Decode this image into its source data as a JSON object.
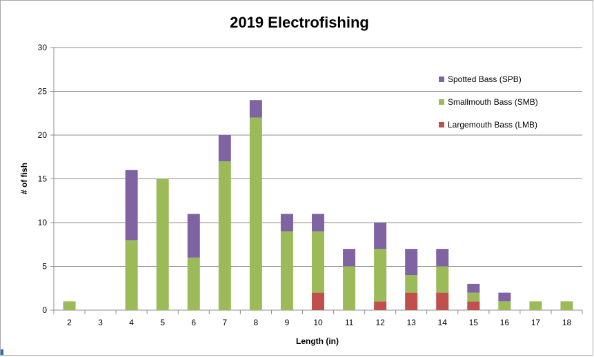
{
  "chart_data": {
    "type": "bar",
    "stacked": true,
    "title": "2019 Electrofishing",
    "xlabel": "Length (in)",
    "ylabel": "# of fish",
    "ylim": [
      0,
      30
    ],
    "yticks": [
      "0",
      "5",
      "10",
      "15",
      "20",
      "25",
      "30"
    ],
    "categories": [
      "2",
      "3",
      "4",
      "5",
      "6",
      "7",
      "8",
      "9",
      "10",
      "11",
      "12",
      "13",
      "14",
      "15",
      "16",
      "17",
      "18"
    ],
    "grid": "horizontal",
    "legend_position": "top-right",
    "series": [
      {
        "name": "Largemouth Bass (LMB)",
        "color": "#c0504d",
        "values": [
          0,
          0,
          0,
          0,
          0,
          0,
          0,
          0,
          2,
          0,
          1,
          2,
          2,
          1,
          0,
          0,
          0
        ]
      },
      {
        "name": "Smallmouth Bass (SMB)",
        "color": "#9bbb59",
        "values": [
          1,
          0,
          8,
          15,
          6,
          17,
          22,
          9,
          7,
          5,
          6,
          2,
          3,
          1,
          1,
          1,
          1
        ]
      },
      {
        "name": "Spotted Bass (SPB)",
        "color": "#8064a2",
        "values": [
          0,
          0,
          8,
          0,
          5,
          3,
          2,
          2,
          2,
          2,
          3,
          3,
          2,
          1,
          1,
          0,
          0
        ]
      }
    ],
    "legend_order": [
      "Spotted Bass (SPB)",
      "Smallmouth Bass (SMB)",
      "Largemouth Bass (LMB)"
    ]
  }
}
